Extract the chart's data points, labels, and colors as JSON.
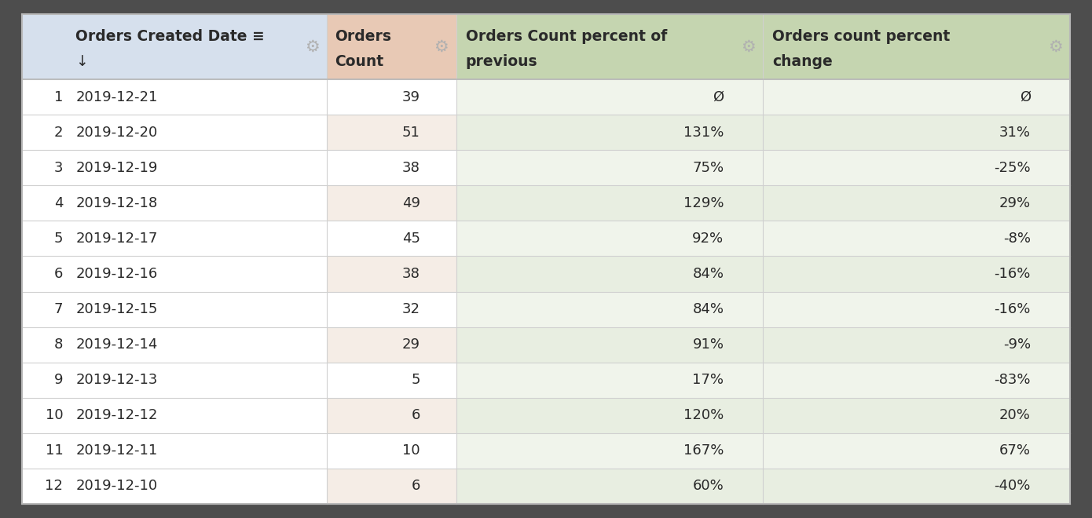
{
  "background_color": "#4d4d4d",
  "col_header_bg": "#d6e0ed",
  "col2_header_bg": "#e8c9b5",
  "col34_header_bg": "#c5d5b0",
  "col1_row_white": "#ffffff",
  "col2_row_even_bg": "#f5ede6",
  "col34_row_odd_bg": "#f0f4eb",
  "col34_row_even_bg": "#e8eee1",
  "text_color": "#2a2a2a",
  "gear_color": "#b0b0b0",
  "rows": [
    {
      "row_num": "1",
      "date": "2019-12-21",
      "count": "39",
      "pct_prev": "Ø",
      "pct_change": "Ø"
    },
    {
      "row_num": "2",
      "date": "2019-12-20",
      "count": "51",
      "pct_prev": "131%",
      "pct_change": "31%"
    },
    {
      "row_num": "3",
      "date": "2019-12-19",
      "count": "38",
      "pct_prev": "75%",
      "pct_change": "-25%"
    },
    {
      "row_num": "4",
      "date": "2019-12-18",
      "count": "49",
      "pct_prev": "129%",
      "pct_change": "29%"
    },
    {
      "row_num": "5",
      "date": "2019-12-17",
      "count": "45",
      "pct_prev": "92%",
      "pct_change": "-8%"
    },
    {
      "row_num": "6",
      "date": "2019-12-16",
      "count": "38",
      "pct_prev": "84%",
      "pct_change": "-16%"
    },
    {
      "row_num": "7",
      "date": "2019-12-15",
      "count": "32",
      "pct_prev": "84%",
      "pct_change": "-16%"
    },
    {
      "row_num": "8",
      "date": "2019-12-14",
      "count": "29",
      "pct_prev": "91%",
      "pct_change": "-9%"
    },
    {
      "row_num": "9",
      "date": "2019-12-13",
      "count": "5",
      "pct_prev": "17%",
      "pct_change": "-83%"
    },
    {
      "row_num": "10",
      "date": "2019-12-12",
      "count": "6",
      "pct_prev": "120%",
      "pct_change": "20%"
    },
    {
      "row_num": "11",
      "date": "2019-12-11",
      "count": "10",
      "pct_prev": "167%",
      "pct_change": "67%"
    },
    {
      "row_num": "12",
      "date": "2019-12-10",
      "count": "6",
      "pct_prev": "60%",
      "pct_change": "-40%"
    }
  ]
}
